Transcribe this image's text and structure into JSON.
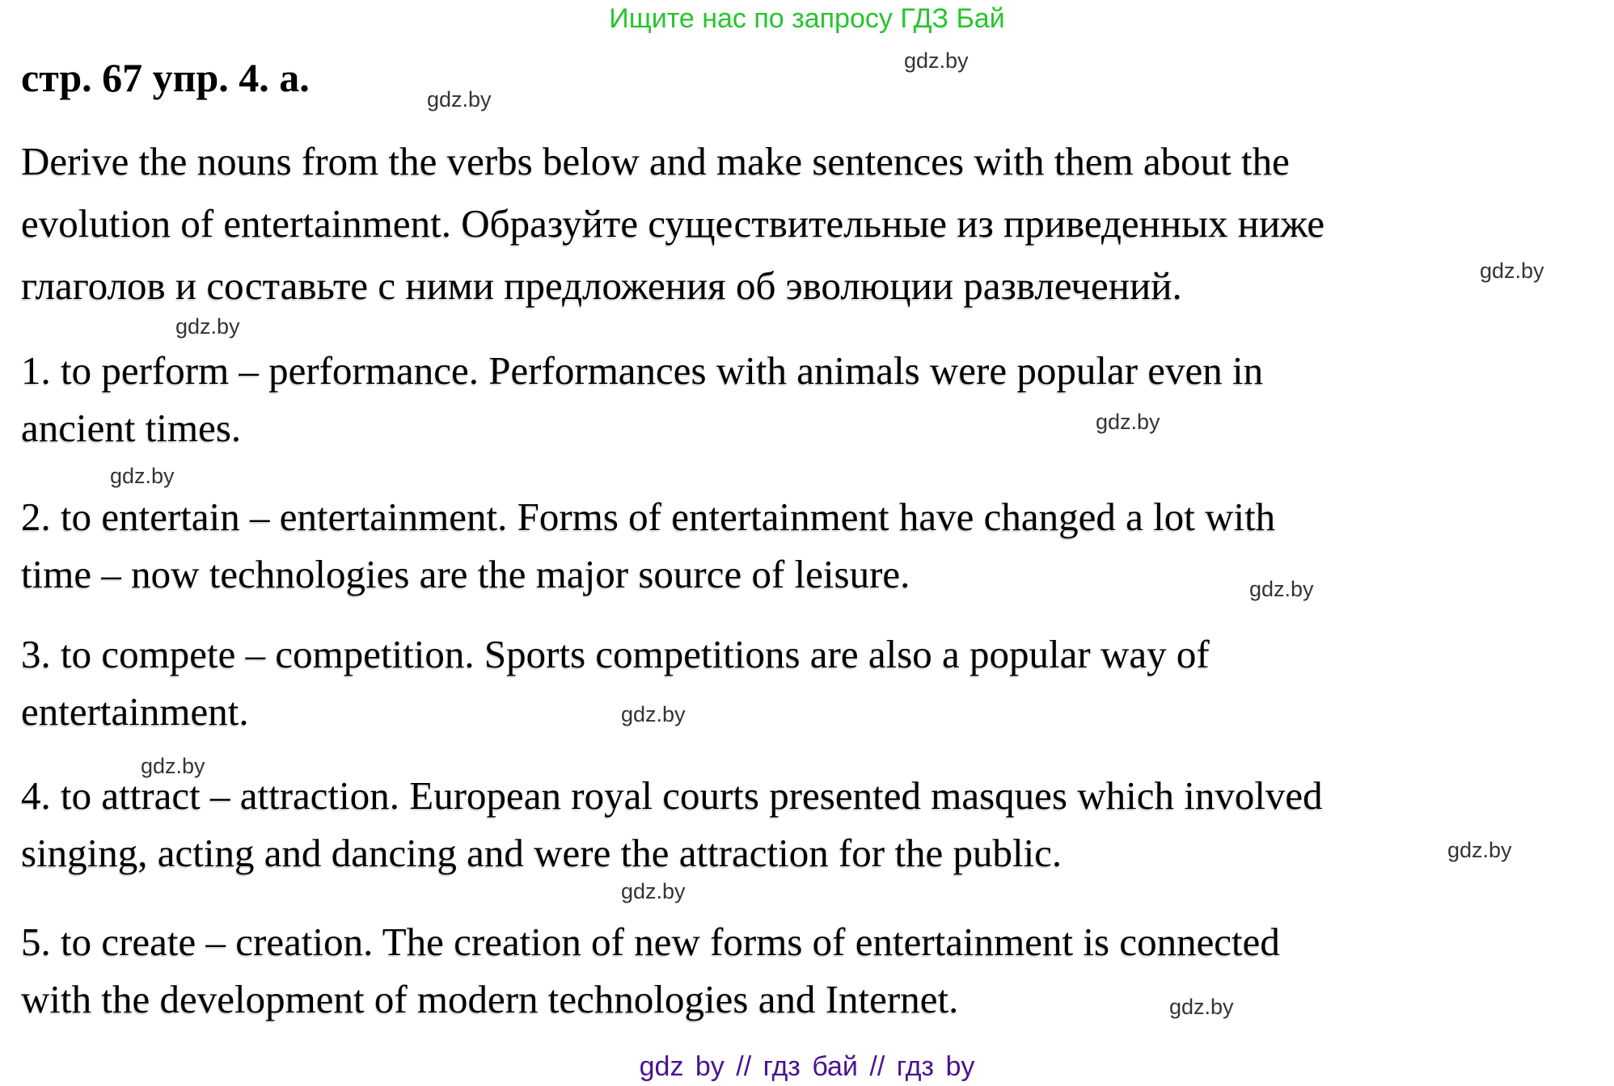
{
  "banner": {
    "text": "Ищите нас по запросу ГДЗ Бай"
  },
  "header": {
    "title": "стр. 67 упр. 4. а."
  },
  "task": {
    "lines": [
      "Derive the nouns from the verbs below and make sentences with them about the",
      "evolution of entertainment. Образуйте существительные из приведенных ниже",
      "глаголов и составьте с ними предложения об эволюции развлечений."
    ]
  },
  "answers": [
    {
      "number": "1",
      "lines": [
        "1. to perform – performance. Performances with animals were popular even in",
        "ancient times."
      ]
    },
    {
      "number": "2",
      "lines": [
        "2. to entertain – entertainment. Forms of entertainment have changed a lot with",
        "time – now technologies are the major source of leisure."
      ]
    },
    {
      "number": "3",
      "lines": [
        "3. to compete – competition. Sports competitions are also a popular way of",
        "entertainment."
      ]
    },
    {
      "number": "4",
      "lines": [
        "4. to attract – attraction. European royal courts presented masques which involved",
        "singing, acting and dancing and were the attraction for the public."
      ]
    },
    {
      "number": "5",
      "lines": [
        "5. to create – creation. The creation of new forms of entertainment is connected",
        "with the development of modern technologies and Internet."
      ]
    }
  ],
  "watermark": {
    "label": "gdz.by"
  },
  "footer": {
    "text": "gdz by  //  гдз бай  //  гдз by"
  },
  "colors": {
    "banner_green": "#26c52e",
    "footer_purple": "#4a1390",
    "watermark_gray": "#343434",
    "body_text": "#000000",
    "background": "#ffffff"
  }
}
